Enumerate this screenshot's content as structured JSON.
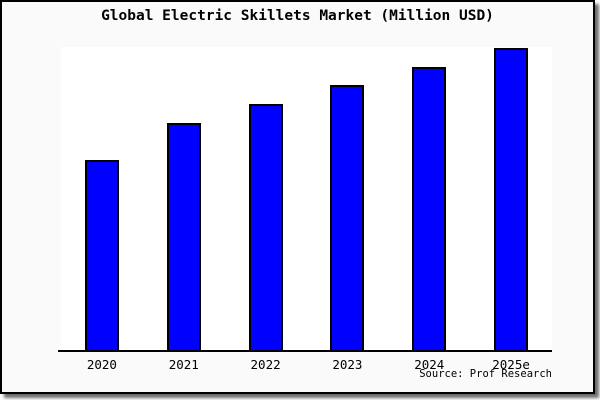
{
  "chart": {
    "title": "Global Electric Skillets Market (Million USD)",
    "source": "Source: Prof Research"
  },
  "chart_data": {
    "type": "bar",
    "title": "Global Electric Skillets Market (Million USD)",
    "categories": [
      "2020",
      "2021",
      "2022",
      "2023",
      "2024",
      "2025e"
    ],
    "values": [
      62.8,
      75.1,
      81.4,
      87.7,
      93.7,
      100
    ],
    "value_scale": "relative bar height, % of tallest bar (2025e); chart shows no numeric y-axis",
    "xlabel": "",
    "ylabel": "",
    "ylim": [
      0,
      101
    ],
    "grid": false,
    "legend": false,
    "annotations": [
      "Source: Prof Research"
    ]
  },
  "colors": {
    "bar_fill": "#0000ff",
    "bar_border": "#000000",
    "axis": "#000000",
    "card_bg": "#fafafa",
    "plot_bg": "#ffffff",
    "text": "#000000"
  }
}
